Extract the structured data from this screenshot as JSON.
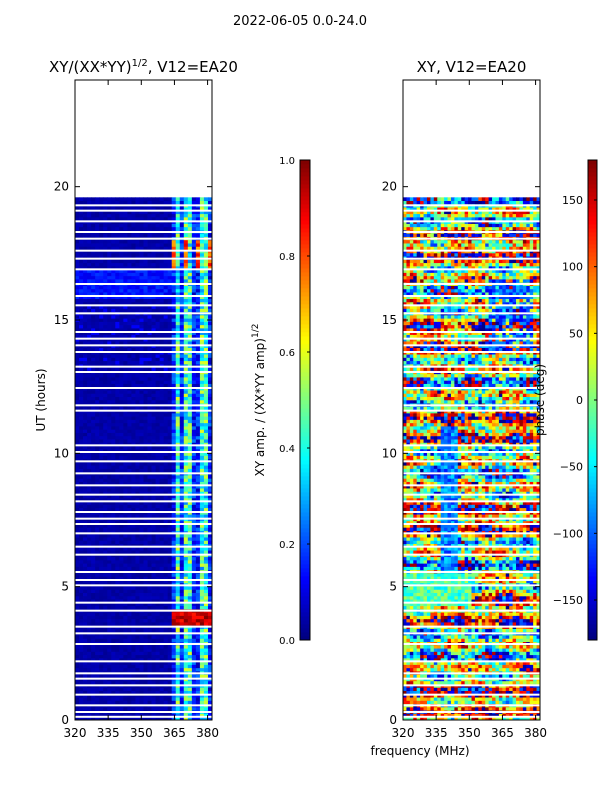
{
  "figure": {
    "suptitle": "2022-06-05 0.0-24.0",
    "xlabel_common": "frequency (MHz)"
  },
  "colors": {
    "background": "#ffffff",
    "axis": "#000000",
    "white_gap": "#ffffff"
  },
  "chart_data": [
    {
      "type": "heatmap",
      "title": "XY/(XX*YY)^(1/2), V12=EA20",
      "title_main": "XY/(XX*YY)",
      "title_sup": "1/2",
      "title_tail": ", V12=EA20",
      "xlabel": "",
      "ylabel": "UT (hours)",
      "xlim": [
        320,
        382
      ],
      "ylim": [
        0,
        24
      ],
      "xticks": [
        320,
        335,
        350,
        365,
        380
      ],
      "yticks": [
        0,
        5,
        10,
        15,
        20
      ],
      "data_end_hour": 19.6,
      "colorbar": {
        "label_main": "XY amp. / (XX*YY amp)",
        "label_sup": "1/2",
        "range": [
          0.0,
          1.0
        ],
        "ticks": [
          "0.0",
          "0.2",
          "0.4",
          "0.6",
          "0.8",
          "1.0"
        ],
        "cmap": "jet"
      },
      "description_bands": [
        {
          "freq": [
            320,
            362
          ],
          "value": 0.05
        },
        {
          "freq": [
            362,
            382
          ],
          "value": 0.35,
          "note": "hot channels near 365-380 MHz"
        }
      ]
    },
    {
      "type": "heatmap",
      "title": "XY, V12=EA20",
      "xlabel": "frequency (MHz)",
      "ylabel": "",
      "xlim": [
        320,
        382
      ],
      "ylim": [
        0,
        24
      ],
      "xticks": [
        320,
        335,
        350,
        365,
        380
      ],
      "yticks": [
        0,
        5,
        10,
        15,
        20
      ],
      "data_end_hour": 19.6,
      "colorbar": {
        "label": "phase (deg)",
        "range": [
          -180,
          180
        ],
        "ticks": [
          "150",
          "100",
          "50",
          "0",
          "−50",
          "−100",
          "−150"
        ],
        "tick_values": [
          150,
          100,
          50,
          0,
          -50,
          -100,
          -150
        ],
        "cmap": "jet"
      }
    }
  ]
}
